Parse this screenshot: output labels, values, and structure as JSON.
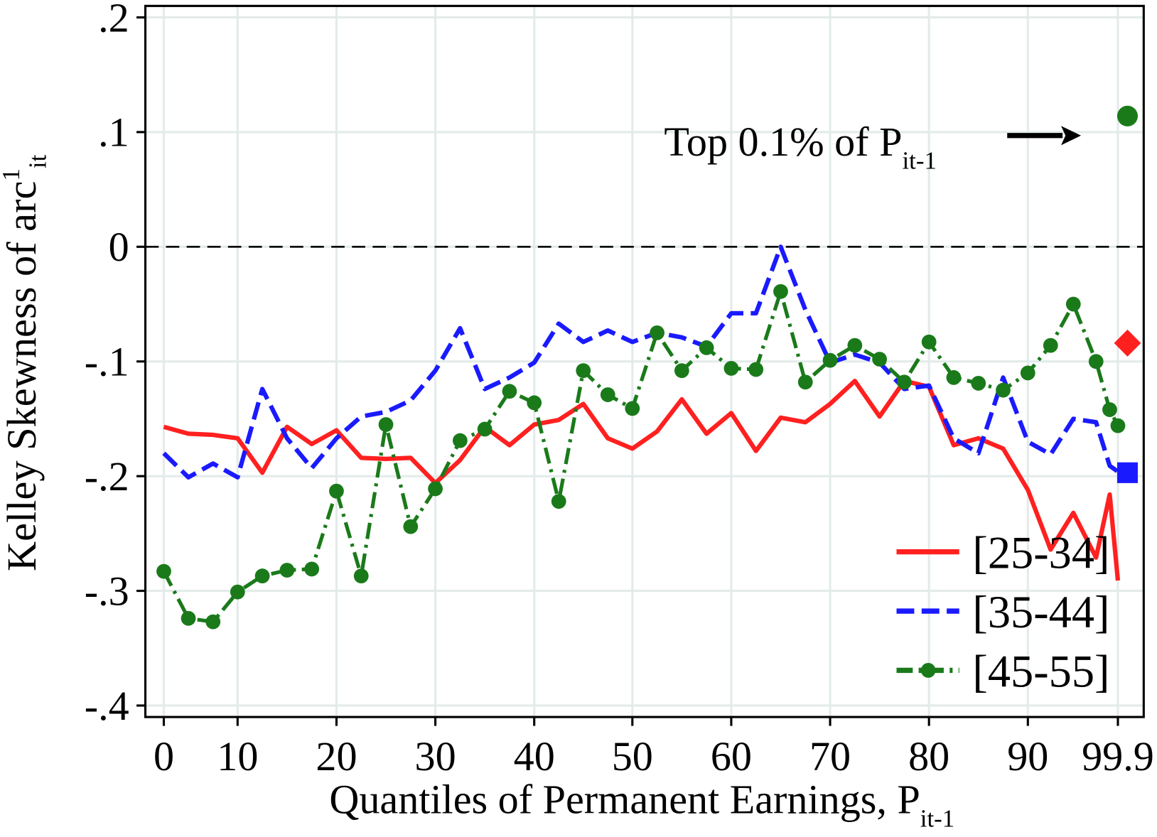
{
  "chart_data": {
    "type": "line",
    "x_label": {
      "text": "Quantiles of Permanent Earnings, P",
      "sub": "it-1"
    },
    "y_label": {
      "text": "Kelley Skewness of arc",
      "sup": "1",
      "sub": "it"
    },
    "annotation": {
      "text": "Top 0.1% of P",
      "sub": "it-1"
    },
    "x": [
      0,
      3.33,
      6.67,
      10,
      12.5,
      15,
      17.5,
      20,
      22.5,
      25,
      27.5,
      30,
      32.5,
      35,
      37.5,
      40,
      42.5,
      45,
      47.5,
      50,
      52.5,
      55,
      57.5,
      60,
      62.5,
      65,
      67.5,
      70,
      72.5,
      75,
      77.5,
      80,
      82.5,
      85,
      87.5,
      90,
      92.5,
      95,
      97.5,
      99,
      99.9
    ],
    "series": [
      {
        "name": "[25-34]",
        "color": "#ff2020",
        "style": "solid",
        "marker": "diamond",
        "values": [
          -0.157,
          -0.163,
          -0.164,
          -0.167,
          -0.197,
          -0.157,
          -0.172,
          -0.16,
          -0.184,
          -0.185,
          -0.184,
          -0.206,
          -0.186,
          -0.157,
          -0.173,
          -0.155,
          -0.151,
          -0.137,
          -0.167,
          -0.176,
          -0.161,
          -0.133,
          -0.163,
          -0.145,
          -0.178,
          -0.149,
          -0.153,
          -0.137,
          -0.117,
          -0.148,
          -0.117,
          -0.122,
          -0.173,
          -0.167,
          -0.176,
          -0.212,
          -0.264,
          -0.232,
          -0.271,
          -0.216,
          -0.291
        ],
        "top_value": -0.084
      },
      {
        "name": "[35-44]",
        "color": "#1a1aff",
        "style": "dashed",
        "marker": "square",
        "values": [
          -0.18,
          -0.201,
          -0.189,
          -0.201,
          -0.124,
          -0.167,
          -0.193,
          -0.167,
          -0.148,
          -0.144,
          -0.134,
          -0.108,
          -0.071,
          -0.124,
          -0.114,
          -0.101,
          -0.067,
          -0.083,
          -0.073,
          -0.083,
          -0.075,
          -0.079,
          -0.087,
          -0.058,
          -0.058,
          0,
          -0.055,
          -0.101,
          -0.094,
          -0.101,
          -0.124,
          -0.121,
          -0.167,
          -0.18,
          -0.114,
          -0.17,
          -0.181,
          -0.15,
          -0.153,
          -0.191,
          -0.196
        ],
        "top_value": -0.197
      },
      {
        "name": "[45-55]",
        "color": "#1a7a1a",
        "style": "dashdot",
        "marker": "circle",
        "values": [
          -0.283,
          -0.324,
          -0.327,
          -0.301,
          -0.287,
          -0.282,
          -0.281,
          -0.213,
          -0.287,
          -0.155,
          -0.244,
          -0.211,
          -0.169,
          -0.159,
          -0.126,
          -0.136,
          -0.222,
          -0.108,
          -0.129,
          -0.141,
          -0.075,
          -0.108,
          -0.088,
          -0.106,
          -0.107,
          -0.039,
          -0.118,
          -0.099,
          -0.086,
          -0.098,
          -0.118,
          -0.083,
          -0.114,
          -0.119,
          -0.125,
          -0.11,
          -0.086,
          -0.05,
          -0.1,
          -0.142,
          -0.156
        ],
        "top_value": 0.114
      }
    ],
    "xticks": [
      0,
      10,
      20,
      30,
      40,
      50,
      60,
      70,
      80,
      90,
      99.9
    ],
    "ylim": [
      -0.41,
      0.21
    ],
    "yticks": [
      {
        "value": -0.4,
        "label": "-.4"
      },
      {
        "value": -0.3,
        "label": "-.3"
      },
      {
        "value": -0.2,
        "label": "-.2"
      },
      {
        "value": -0.1,
        "label": "-.1"
      },
      0,
      {
        "value": 0.1,
        "label": ".1"
      },
      {
        "value": 0.2,
        "label": ".2"
      }
    ],
    "zero_line": 0,
    "grid": true,
    "legend": "lower right"
  }
}
